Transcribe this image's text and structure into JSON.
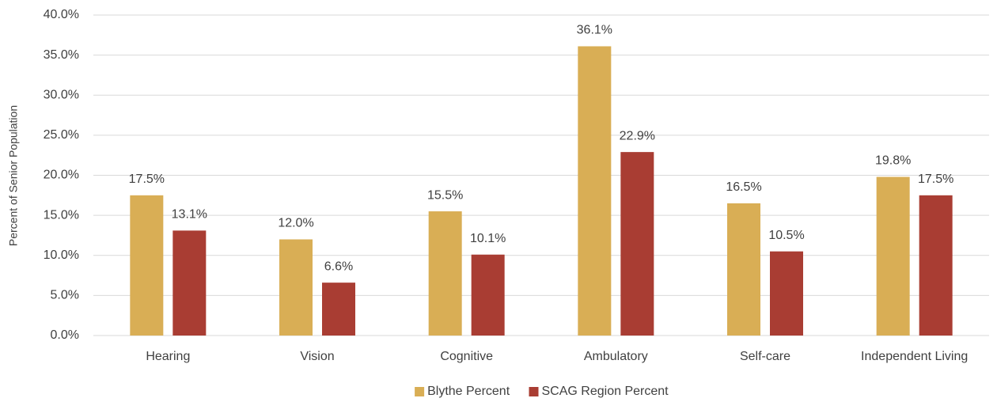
{
  "chart_data": {
    "type": "bar",
    "y_axis_label": "Percent of Senior Population",
    "categories": [
      "Hearing",
      "Vision",
      "Cognitive",
      "Ambulatory",
      "Self-care",
      "Independent Living"
    ],
    "series": [
      {
        "name": "Blythe Percent",
        "color": "#d9ae55",
        "values": [
          17.5,
          12.0,
          15.5,
          36.1,
          16.5,
          19.8
        ],
        "value_labels": [
          "17.5%",
          "12.0%",
          "15.5%",
          "36.1%",
          "16.5%",
          "19.8%"
        ]
      },
      {
        "name": "SCAG Region Percent",
        "color": "#a93d33",
        "values": [
          13.1,
          6.6,
          10.1,
          22.9,
          10.5,
          17.5
        ],
        "value_labels": [
          "13.1%",
          "6.6%",
          "10.1%",
          "22.9%",
          "10.5%",
          "17.5%"
        ]
      }
    ],
    "ylim": [
      0,
      40
    ],
    "yticks": [
      {
        "value": 0,
        "label": "0.0%"
      },
      {
        "value": 5,
        "label": "5.0%"
      },
      {
        "value": 10,
        "label": "10.0%"
      },
      {
        "value": 15,
        "label": "15.0%"
      },
      {
        "value": 20,
        "label": "20.0%"
      },
      {
        "value": 25,
        "label": "25.0%"
      },
      {
        "value": 30,
        "label": "30.0%"
      },
      {
        "value": 35,
        "label": "35.0%"
      },
      {
        "value": 40,
        "label": "40.0%"
      }
    ],
    "grid": true,
    "legend": "bottom"
  }
}
